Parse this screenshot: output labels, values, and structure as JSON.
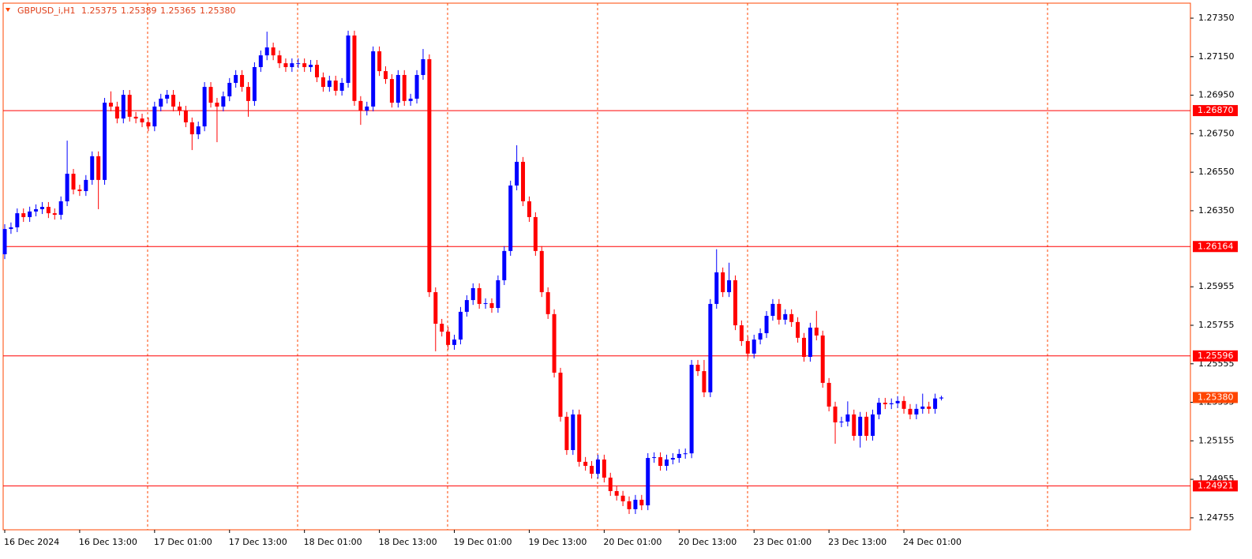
{
  "chart_data": {
    "type": "candlestick",
    "info": "GBPUSD_i,H1",
    "info_values": [
      "1.25375",
      "1.25389",
      "1.25365",
      "1.25380"
    ],
    "up_color": "#0000ff",
    "down_color": "#ff0000",
    "hline_color": "#ff0000",
    "grid_color": "#ff4500",
    "current_color": "#ff4500",
    "ylim": [
      1.24693,
      1.27428
    ],
    "yticks": [
      {
        "value": 1.2735,
        "label": "1.27350"
      },
      {
        "value": 1.2715,
        "label": "1.27150"
      },
      {
        "value": 1.2695,
        "label": "1.26950"
      },
      {
        "value": 1.2675,
        "label": "1.26750"
      },
      {
        "value": 1.2655,
        "label": "1.26550"
      },
      {
        "value": 1.2635,
        "label": "1.26350"
      },
      {
        "value": 1.25955,
        "label": "1.25955"
      },
      {
        "value": 1.25755,
        "label": "1.25755"
      },
      {
        "value": 1.25555,
        "label": "1.25555"
      },
      {
        "value": 1.25355,
        "label": "1.25355"
      },
      {
        "value": 1.25155,
        "label": "1.25155"
      },
      {
        "value": 1.24955,
        "label": "1.24955"
      },
      {
        "value": 1.24755,
        "label": "1.24755"
      }
    ],
    "hlines": [
      {
        "value": 1.2687,
        "label": "1.26870"
      },
      {
        "value": 1.26164,
        "label": "1.26164"
      },
      {
        "value": 1.25596,
        "label": "1.25596"
      },
      {
        "value": 1.24921,
        "label": "1.24921"
      }
    ],
    "current_price": {
      "value": 1.2538,
      "label": "1.25380"
    },
    "categories": [
      "16 Dec 2024",
      null,
      null,
      null,
      null,
      null,
      null,
      null,
      null,
      null,
      null,
      null,
      "16 Dec 13:00",
      null,
      null,
      null,
      null,
      null,
      null,
      null,
      null,
      null,
      null,
      null,
      "17 Dec 01:00",
      null,
      null,
      null,
      null,
      null,
      null,
      null,
      null,
      null,
      null,
      null,
      "17 Dec 13:00",
      null,
      null,
      null,
      null,
      null,
      null,
      null,
      null,
      null,
      null,
      null,
      "18 Dec 01:00",
      null,
      null,
      null,
      null,
      null,
      null,
      null,
      null,
      null,
      null,
      null,
      "18 Dec 13:00",
      null,
      null,
      null,
      null,
      null,
      null,
      null,
      null,
      null,
      null,
      null,
      "19 Dec 01:00",
      null,
      null,
      null,
      null,
      null,
      null,
      null,
      null,
      null,
      null,
      null,
      "19 Dec 13:00",
      null,
      null,
      null,
      null,
      null,
      null,
      null,
      null,
      null,
      null,
      null,
      "20 Dec 01:00",
      null,
      null,
      null,
      null,
      null,
      null,
      null,
      null,
      null,
      null,
      null,
      "20 Dec 13:00",
      null,
      null,
      null,
      null,
      null,
      null,
      null,
      null,
      null,
      null,
      null,
      "23 Dec 01:00",
      null,
      null,
      null,
      null,
      null,
      null,
      null,
      null,
      null,
      null,
      null,
      "23 Dec 13:00",
      null,
      null,
      null,
      null,
      null,
      null,
      null,
      null,
      null,
      null,
      null,
      "24 Dec 01:00",
      null,
      null,
      null,
      null,
      null,
      null
    ],
    "open": [
      1.26124,
      1.26255,
      1.26264,
      1.26337,
      1.26317,
      1.26346,
      1.26358,
      1.2637,
      1.26337,
      1.26329,
      1.26399,
      1.26542,
      1.2646,
      1.26452,
      1.2651,
      1.26633,
      1.2651,
      1.26911,
      1.26891,
      1.26829,
      1.26952,
      1.26838,
      1.26829,
      1.26809,
      1.26788,
      1.26891,
      1.26932,
      1.26952,
      1.26891,
      1.2687,
      1.26809,
      1.26747,
      1.26788,
      1.26993,
      1.26911,
      1.26891,
      1.26944,
      1.27014,
      1.27055,
      1.26993,
      1.2692,
      1.27096,
      1.27157,
      1.27198,
      1.27157,
      1.27116,
      1.27096,
      1.27116,
      1.27116,
      1.27096,
      1.27108,
      1.27043,
      1.26993,
      1.27026,
      1.26973,
      1.27014,
      1.2726,
      1.2692,
      1.2687,
      1.26891,
      1.27178,
      1.27075,
      1.27034,
      1.26911,
      1.27055,
      1.2692,
      1.26932,
      1.27055,
      1.27137,
      1.25927,
      1.25763,
      1.25722,
      1.25653,
      1.25681,
      1.25825,
      1.25886,
      1.25948,
      1.25866,
      1.2587,
      1.25845,
      1.25989,
      1.26141,
      1.26481,
      1.26604,
      1.26399,
      1.26317,
      1.26141,
      1.25927,
      1.25813,
      1.25509,
      1.2528,
      1.25107,
      1.25292,
      1.25046,
      1.25025,
      1.24984,
      1.25058,
      1.24964,
      1.24894,
      1.2487,
      1.24841,
      1.248,
      1.24849,
      1.2482,
      1.25066,
      1.2507,
      1.25025,
      1.25058,
      1.25066,
      1.25087,
      1.2509,
      1.2555,
      1.25517,
      1.25407,
      1.25866,
      1.2603,
      1.25927,
      1.25989,
      1.25755,
      1.25673,
      1.25608,
      1.25681,
      1.25714,
      1.25804,
      1.25866,
      1.25784,
      1.25813,
      1.25772,
      1.2569,
      1.25591,
      1.25743,
      1.25702,
      1.25456,
      1.25333,
      1.25251,
      1.25255,
      1.25292,
      1.25181,
      1.2528,
      1.25181,
      1.25292,
      1.25353,
      1.25345,
      1.2535,
      1.25362,
      1.25321,
      1.25292,
      1.25321,
      1.25333,
      1.25321,
      1.25375
    ],
    "high": [
      1.2628,
      1.26289,
      1.26362,
      1.26362,
      1.26371,
      1.26383,
      1.26395,
      1.26395,
      1.26362,
      1.26424,
      1.26714,
      1.26567,
      1.26485,
      1.26535,
      1.26658,
      1.26658,
      1.26936,
      1.2697,
      1.26916,
      1.26977,
      1.26977,
      1.26863,
      1.26854,
      1.26834,
      1.26916,
      1.26957,
      1.26977,
      1.26977,
      1.26916,
      1.26895,
      1.26834,
      1.26813,
      1.27018,
      1.27018,
      1.26936,
      1.26969,
      1.27039,
      1.2708,
      1.2708,
      1.27018,
      1.27121,
      1.27182,
      1.2728,
      1.27223,
      1.27182,
      1.27141,
      1.27141,
      1.27141,
      1.27141,
      1.27133,
      1.27133,
      1.27068,
      1.27051,
      1.27051,
      1.27039,
      1.27285,
      1.27285,
      1.26945,
      1.26916,
      1.27203,
      1.27203,
      1.271,
      1.27059,
      1.2708,
      1.2708,
      1.26957,
      1.2708,
      1.2719,
      1.27162,
      1.25952,
      1.25788,
      1.25747,
      1.25706,
      1.2585,
      1.25911,
      1.25973,
      1.25973,
      1.25895,
      1.25895,
      1.26014,
      1.26166,
      1.26506,
      1.2669,
      1.26629,
      1.26424,
      1.26342,
      1.26166,
      1.25952,
      1.25838,
      1.25534,
      1.25305,
      1.25317,
      1.25317,
      1.25071,
      1.2505,
      1.25083,
      1.25083,
      1.24989,
      1.24919,
      1.24895,
      1.24866,
      1.24874,
      1.24874,
      1.25091,
      1.25095,
      1.25095,
      1.25083,
      1.25091,
      1.25112,
      1.25115,
      1.25575,
      1.25575,
      1.25575,
      1.25891,
      1.2615,
      1.26055,
      1.2608,
      1.26014,
      1.2578,
      1.25698,
      1.25706,
      1.25739,
      1.25829,
      1.25891,
      1.25891,
      1.25838,
      1.25838,
      1.25797,
      1.25715,
      1.25768,
      1.2583,
      1.25727,
      1.25481,
      1.25358,
      1.2528,
      1.2536,
      1.25317,
      1.25305,
      1.25305,
      1.25317,
      1.25378,
      1.25378,
      1.25375,
      1.25387,
      1.25387,
      1.25346,
      1.25346,
      1.254,
      1.25358,
      1.254,
      1.25389
    ],
    "low": [
      1.26099,
      1.2623,
      1.26239,
      1.26292,
      1.26292,
      1.26321,
      1.26333,
      1.26312,
      1.26304,
      1.26304,
      1.26374,
      1.26435,
      1.26427,
      1.26427,
      1.26485,
      1.26358,
      1.26485,
      1.26866,
      1.26804,
      1.26804,
      1.26813,
      1.26804,
      1.26784,
      1.26763,
      1.26763,
      1.26866,
      1.26907,
      1.26866,
      1.26845,
      1.26784,
      1.26665,
      1.26722,
      1.26763,
      1.26886,
      1.26706,
      1.26866,
      1.26919,
      1.26989,
      1.26968,
      1.26838,
      1.26895,
      1.27071,
      1.27132,
      1.27132,
      1.27091,
      1.27071,
      1.27071,
      1.27091,
      1.27071,
      1.27071,
      1.27018,
      1.26968,
      1.26968,
      1.26948,
      1.26948,
      1.26989,
      1.26895,
      1.26796,
      1.26845,
      1.26866,
      1.2705,
      1.27009,
      1.26886,
      1.26886,
      1.26895,
      1.26895,
      1.26907,
      1.2703,
      1.25902,
      1.2562,
      1.25697,
      1.25628,
      1.25628,
      1.25656,
      1.258,
      1.25861,
      1.25841,
      1.25841,
      1.2582,
      1.2582,
      1.25964,
      1.26116,
      1.26456,
      1.26374,
      1.26292,
      1.26116,
      1.25902,
      1.25788,
      1.25484,
      1.25255,
      1.25082,
      1.25082,
      1.25021,
      1.25,
      1.24959,
      1.24959,
      1.24939,
      1.24869,
      1.24845,
      1.24816,
      1.24775,
      1.24775,
      1.24795,
      1.24795,
      1.25041,
      1.25,
      1.25,
      1.25033,
      1.25041,
      1.25062,
      1.25065,
      1.25492,
      1.25382,
      1.25382,
      1.25841,
      1.25902,
      1.25902,
      1.2573,
      1.25648,
      1.25583,
      1.25583,
      1.25656,
      1.25689,
      1.25779,
      1.25759,
      1.25759,
      1.25747,
      1.25665,
      1.25566,
      1.25566,
      1.25677,
      1.25431,
      1.25308,
      1.2514,
      1.25226,
      1.2523,
      1.25156,
      1.2512,
      1.25156,
      1.25156,
      1.25267,
      1.2532,
      1.2532,
      1.25325,
      1.25296,
      1.25267,
      1.25267,
      1.25296,
      1.25296,
      1.25296,
      1.25365
    ],
    "close": [
      1.26255,
      1.26264,
      1.26337,
      1.26317,
      1.26346,
      1.26358,
      1.2637,
      1.26337,
      1.26329,
      1.26399,
      1.26542,
      1.2646,
      1.26452,
      1.2651,
      1.26633,
      1.2651,
      1.26911,
      1.26891,
      1.26829,
      1.26952,
      1.26838,
      1.26829,
      1.26809,
      1.26788,
      1.26891,
      1.26932,
      1.26952,
      1.26891,
      1.2687,
      1.26809,
      1.26747,
      1.26788,
      1.26993,
      1.26911,
      1.26891,
      1.26944,
      1.27014,
      1.27055,
      1.26993,
      1.2692,
      1.27096,
      1.27157,
      1.27198,
      1.27157,
      1.27116,
      1.27096,
      1.27116,
      1.27116,
      1.27096,
      1.27108,
      1.27043,
      1.26993,
      1.27026,
      1.26973,
      1.27014,
      1.2726,
      1.2692,
      1.2687,
      1.26891,
      1.27178,
      1.27075,
      1.27034,
      1.26911,
      1.27055,
      1.2692,
      1.26932,
      1.27055,
      1.27137,
      1.25927,
      1.25763,
      1.25722,
      1.25653,
      1.25681,
      1.25825,
      1.25886,
      1.25948,
      1.25866,
      1.2587,
      1.25845,
      1.25989,
      1.26141,
      1.26481,
      1.26604,
      1.26399,
      1.26317,
      1.26141,
      1.25927,
      1.25813,
      1.25509,
      1.2528,
      1.25107,
      1.25292,
      1.25046,
      1.25025,
      1.24984,
      1.25058,
      1.24964,
      1.24894,
      1.2487,
      1.24841,
      1.248,
      1.24849,
      1.2482,
      1.25066,
      1.2507,
      1.25025,
      1.25058,
      1.25066,
      1.25087,
      1.2509,
      1.2555,
      1.25517,
      1.25407,
      1.25866,
      1.2603,
      1.25927,
      1.25989,
      1.25755,
      1.25673,
      1.25608,
      1.25681,
      1.25714,
      1.25804,
      1.25866,
      1.25784,
      1.25813,
      1.25772,
      1.2569,
      1.25591,
      1.25743,
      1.25702,
      1.25456,
      1.25333,
      1.25251,
      1.25255,
      1.25292,
      1.25181,
      1.2528,
      1.25181,
      1.25292,
      1.25353,
      1.25345,
      1.2535,
      1.25362,
      1.25321,
      1.25292,
      1.25321,
      1.25333,
      1.25321,
      1.25375,
      1.2538
    ]
  }
}
